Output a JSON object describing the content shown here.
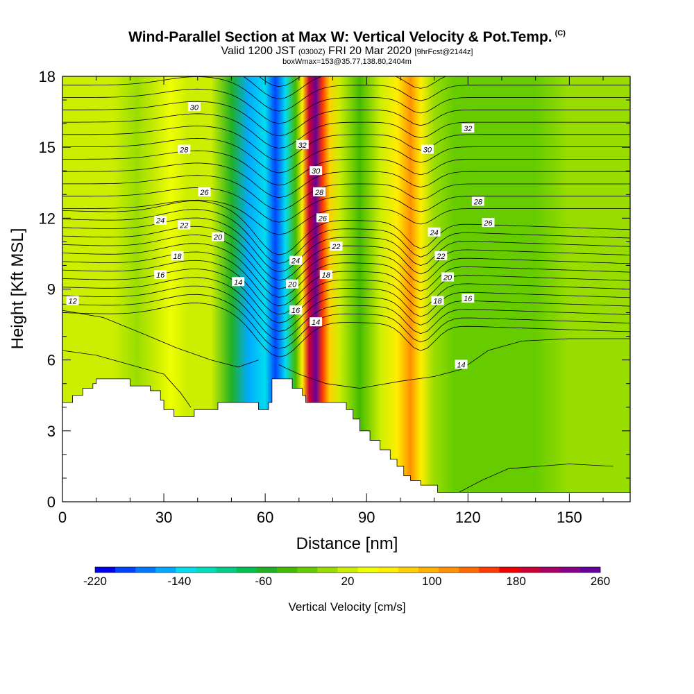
{
  "header": {
    "title": "Wind-Parallel Section at Max W: Vertical Velocity & Pot.Temp.",
    "title_mark": "(C)",
    "valid_prefix": "Valid 1200 JST",
    "valid_utc": "(0300Z)",
    "valid_date": "FRI 20 Mar 2020",
    "valid_fcst": "[9hrFcst@2144z]",
    "box_line": "boxWmax=153@35.77,138.80,2404m"
  },
  "chart_data": {
    "type": "heatmap",
    "xlabel": "Distance [nm]",
    "ylabel": "Height [Kft MSL]",
    "xlim": [
      0,
      168
    ],
    "ylim": [
      0,
      18
    ],
    "x_ticks": [
      0,
      30,
      60,
      90,
      120,
      150
    ],
    "y_ticks": [
      0,
      3,
      6,
      9,
      12,
      15,
      18
    ],
    "terrain_top_kft": [
      [
        0,
        4.2
      ],
      [
        3,
        4.5
      ],
      [
        6,
        4.8
      ],
      [
        9,
        5.0
      ],
      [
        10,
        5.2
      ],
      [
        19,
        5.2
      ],
      [
        20,
        4.9
      ],
      [
        24,
        4.9
      ],
      [
        26,
        4.7
      ],
      [
        29,
        4.3
      ],
      [
        30,
        3.9
      ],
      [
        33,
        3.6
      ],
      [
        39,
        3.9
      ],
      [
        45,
        3.9
      ],
      [
        46,
        4.2
      ],
      [
        55,
        4.2
      ],
      [
        58,
        3.9
      ],
      [
        61,
        4.2
      ],
      [
        62,
        5.2
      ],
      [
        67,
        5.2
      ],
      [
        68,
        4.8
      ],
      [
        71,
        4.5
      ],
      [
        72,
        4.2
      ],
      [
        83,
        4.2
      ],
      [
        84,
        3.9
      ],
      [
        86,
        3.5
      ],
      [
        88,
        3.0
      ],
      [
        91,
        2.6
      ],
      [
        94,
        2.2
      ],
      [
        97,
        1.8
      ],
      [
        99,
        1.5
      ],
      [
        101,
        1.1
      ],
      [
        103,
        0.9
      ],
      [
        106,
        0.7
      ],
      [
        110,
        0.7
      ],
      [
        111,
        0.4
      ],
      [
        117,
        0.4
      ],
      [
        120,
        0.4
      ],
      [
        168,
        0.4
      ]
    ],
    "vertical_velocity_bands": [
      {
        "x": 0,
        "w": 17
      },
      {
        "x": 4,
        "w": 15
      },
      {
        "x": 9,
        "w": 14
      },
      {
        "x": 15,
        "w": 13
      },
      {
        "x": 22,
        "w": 10
      },
      {
        "x": 28,
        "w": 20
      },
      {
        "x": 32,
        "w": 40
      },
      {
        "x": 37,
        "w": 22
      },
      {
        "x": 44,
        "w": 12
      },
      {
        "x": 50,
        "w": -60
      },
      {
        "x": 55,
        "w": -160
      },
      {
        "x": 60,
        "w": -140
      },
      {
        "x": 63,
        "w": -200
      },
      {
        "x": 66,
        "w": -140
      },
      {
        "x": 69,
        "w": -40
      },
      {
        "x": 71,
        "w": 60
      },
      {
        "x": 73,
        "w": 200
      },
      {
        "x": 75,
        "w": 250
      },
      {
        "x": 77,
        "w": 160
      },
      {
        "x": 79,
        "w": 80
      },
      {
        "x": 82,
        "w": 12
      },
      {
        "x": 88,
        "w": -30
      },
      {
        "x": 94,
        "w": 20
      },
      {
        "x": 99,
        "w": 60
      },
      {
        "x": 103,
        "w": 110
      },
      {
        "x": 106,
        "w": 60
      },
      {
        "x": 110,
        "w": 0
      },
      {
        "x": 116,
        "w": -25
      },
      {
        "x": 122,
        "w": -15
      },
      {
        "x": 130,
        "w": -20
      },
      {
        "x": 140,
        "w": -10
      },
      {
        "x": 150,
        "w": -5
      },
      {
        "x": 160,
        "w": 0
      },
      {
        "x": 168,
        "w": 0
      }
    ],
    "theta_contour_labels": [
      {
        "text": "12",
        "x": 3,
        "y": 8.5
      },
      {
        "text": "14",
        "x": 52,
        "y": 9.3
      },
      {
        "text": "14",
        "x": 75,
        "y": 7.6
      },
      {
        "text": "14",
        "x": 118,
        "y": 5.8
      },
      {
        "text": "16",
        "x": 29,
        "y": 9.6
      },
      {
        "text": "16",
        "x": 69,
        "y": 8.1
      },
      {
        "text": "16",
        "x": 120,
        "y": 8.6
      },
      {
        "text": "18",
        "x": 34,
        "y": 10.4
      },
      {
        "text": "18",
        "x": 78,
        "y": 9.6
      },
      {
        "text": "18",
        "x": 111,
        "y": 8.5
      },
      {
        "text": "20",
        "x": 46,
        "y": 11.2
      },
      {
        "text": "20",
        "x": 68,
        "y": 9.2
      },
      {
        "text": "20",
        "x": 114,
        "y": 9.5
      },
      {
        "text": "22",
        "x": 36,
        "y": 11.7
      },
      {
        "text": "22",
        "x": 81,
        "y": 10.8
      },
      {
        "text": "22",
        "x": 112,
        "y": 10.4
      },
      {
        "text": "24",
        "x": 29,
        "y": 11.9
      },
      {
        "text": "24",
        "x": 69,
        "y": 10.2
      },
      {
        "text": "24",
        "x": 110,
        "y": 11.4
      },
      {
        "text": "26",
        "x": 42,
        "y": 13.1
      },
      {
        "text": "26",
        "x": 77,
        "y": 12.0
      },
      {
        "text": "26",
        "x": 126,
        "y": 11.8
      },
      {
        "text": "28",
        "x": 36,
        "y": 14.9
      },
      {
        "text": "28",
        "x": 76,
        "y": 13.1
      },
      {
        "text": "28",
        "x": 123,
        "y": 12.7
      },
      {
        "text": "30",
        "x": 39,
        "y": 16.7
      },
      {
        "text": "30",
        "x": 75,
        "y": 14.0
      },
      {
        "text": "30",
        "x": 108,
        "y": 14.9
      },
      {
        "text": "32",
        "x": 71,
        "y": 15.1
      },
      {
        "text": "32",
        "x": 120,
        "y": 15.8
      }
    ],
    "colorbar": {
      "title": "Vertical Velocity [cm/s]",
      "min": -220,
      "max": 260,
      "step": 20,
      "tick_labels": [
        "-220",
        "-140",
        "-60",
        "20",
        "100",
        "180",
        "260"
      ],
      "colors": [
        "#0000ee",
        "#0044ff",
        "#0077ff",
        "#00aaff",
        "#00ddee",
        "#00ddbb",
        "#00cc88",
        "#00c050",
        "#22b022",
        "#44bb00",
        "#66cc00",
        "#99dd00",
        "#ccee00",
        "#eeff00",
        "#ffee00",
        "#ffd000",
        "#ffb000",
        "#ff9000",
        "#ff6a00",
        "#ff3a00",
        "#ee0000",
        "#cc0033",
        "#aa0066",
        "#880088",
        "#660099"
      ]
    }
  }
}
